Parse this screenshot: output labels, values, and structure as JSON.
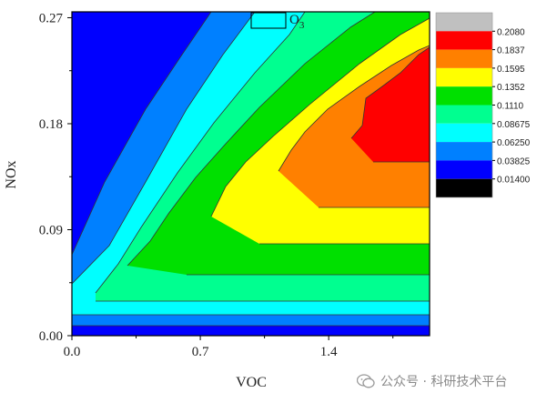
{
  "chart_data": {
    "type": "heatmap",
    "xlabel": "VOC",
    "ylabel": "NOx",
    "xlim": [
      0.0,
      1.95
    ],
    "ylim": [
      0.0,
      0.275
    ],
    "x_ticks": [
      "0.0",
      "0.7",
      "1.4"
    ],
    "y_ticks": [
      "0.00",
      "0.09",
      "0.18",
      "0.27"
    ],
    "x_tick_values": [
      0.0,
      0.7,
      1.4
    ],
    "y_tick_values": [
      0.0,
      0.09,
      0.18,
      0.27
    ],
    "annotation": "O3",
    "legend": {
      "levels": [
        "0.2080",
        "0.1837",
        "0.1595",
        "0.1352",
        "0.1110",
        "0.08675",
        "0.06250",
        "0.03825",
        "0.01400"
      ],
      "colors": [
        "#c0c0c0",
        "#ff0000",
        "#ff8000",
        "#ffff00",
        "#00e000",
        "#00ff90",
        "#00ffff",
        "#0080ff",
        "#0000ff",
        "#000000"
      ]
    },
    "contour_bands": [
      {
        "level_range": [
          0.014,
          0.03825
        ],
        "color": "#0000ff"
      },
      {
        "level_range": [
          0.03825,
          0.0625
        ],
        "color": "#0080ff"
      },
      {
        "level_range": [
          0.0625,
          0.08675
        ],
        "color": "#00ffff"
      },
      {
        "level_range": [
          0.08675,
          0.111
        ],
        "color": "#00ff90"
      },
      {
        "level_range": [
          0.111,
          0.1352
        ],
        "color": "#00e000"
      },
      {
        "level_range": [
          0.1352,
          0.1595
        ],
        "color": "#ffff00"
      },
      {
        "level_range": [
          0.1595,
          0.1837
        ],
        "color": "#ff8000"
      },
      {
        "level_range": [
          0.1837,
          0.208
        ],
        "color": "#ff0000"
      }
    ],
    "grid": false
  },
  "watermark": {
    "text": "公众号 · 科研技术平台"
  }
}
